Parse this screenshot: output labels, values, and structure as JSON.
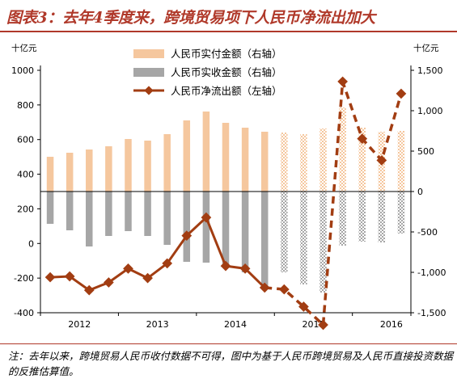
{
  "title": "图表3：去年4季度来，跨境贸易项下人民币净流出加大",
  "note": "注：去年以来，跨境贸易人民币收付数据不可得，图中为基于人民币跨境贸易及人民币直接投资数据的反推估算值。",
  "colors": {
    "paid": "#f5c79e",
    "received": "#a6a6a6",
    "net": "#a23d12",
    "title": "#b0392a"
  },
  "chart_data": {
    "type": "bar",
    "left_axis": {
      "unit": "十亿元",
      "ylim": [
        -400,
        1000
      ],
      "ticks": [
        -400,
        -200,
        0,
        200,
        400,
        600,
        800,
        1000
      ]
    },
    "right_axis": {
      "unit": "十亿元",
      "ylim": [
        -1500,
        1500
      ],
      "ticks": [
        "-1,500",
        "-1,000",
        "-500",
        "0",
        "500",
        "1,000",
        "1,500"
      ]
    },
    "x_labels": [
      "2012",
      "2013",
      "2014",
      "2015",
      "2016"
    ],
    "n_quarters": 19,
    "estimated_from_index": 12,
    "series": [
      {
        "name": "人民币实付金额（右轴）",
        "axis": "right",
        "values": [
          430,
          480,
          520,
          560,
          650,
          630,
          710,
          880,
          990,
          850,
          790,
          740,
          730,
          710,
          780,
          1040,
          790,
          740,
          750
        ]
      },
      {
        "name": "人民币实收金额（右轴）",
        "axis": "right",
        "values": [
          -400,
          -480,
          -680,
          -550,
          -490,
          -550,
          -660,
          -870,
          -880,
          -930,
          -1000,
          -1180,
          -1000,
          -1150,
          -1250,
          -670,
          -620,
          -630,
          -520
        ]
      },
      {
        "name": "人民币净流出额（左轴）",
        "axis": "left",
        "values": [
          -195,
          -190,
          -270,
          -225,
          -145,
          -200,
          -115,
          45,
          150,
          -130,
          -145,
          -255,
          -265,
          -365,
          -470,
          935,
          605,
          480,
          865
        ]
      }
    ]
  }
}
